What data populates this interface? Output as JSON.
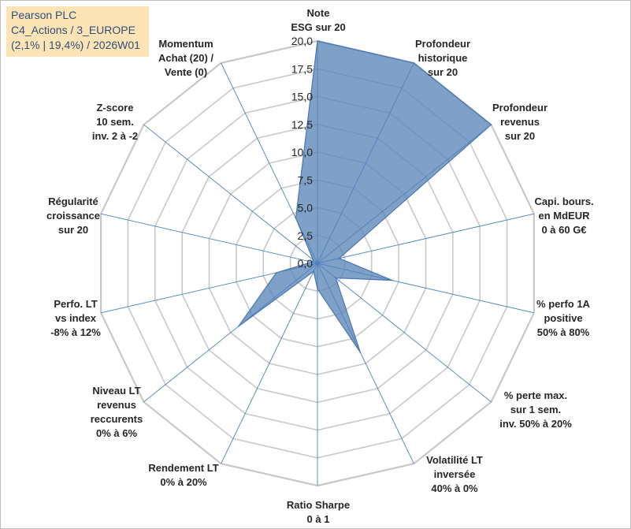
{
  "title_box": {
    "line1": "Pearson PLC",
    "line2": "C4_Actions / 3_EUROPE",
    "line3": "(2,1% | 19,4%) / 2026W01"
  },
  "colors": {
    "fill": "#5b86b8",
    "stroke": "#4a76b0",
    "grid": "#c8c8c8",
    "spoke": "#4f81bd",
    "title_bg": "#fce4b6"
  },
  "chart_data": {
    "type": "radar",
    "title": "Pearson PLC",
    "range": [
      0,
      20
    ],
    "tick_step": 2.5,
    "tick_labels": [
      "0,0",
      "2,5",
      "5,0",
      "7,5",
      "10,0",
      "12,5",
      "15,0",
      "17,5",
      "20,0"
    ],
    "axes": [
      {
        "label": [
          "Note",
          "ESG sur 20"
        ],
        "value": 20.0
      },
      {
        "label": [
          "Profondeur",
          "historique",
          "sur 20"
        ],
        "value": 20.0
      },
      {
        "label": [
          "Profondeur",
          "revenus",
          "sur 20"
        ],
        "value": 20.0
      },
      {
        "label": [
          "Capi. bours.",
          "en MdEUR",
          "0 à 60 G€"
        ],
        "value": 2.0
      },
      {
        "label": [
          "% perfo 1A",
          "positive",
          "50% à 80%"
        ],
        "value": 6.9
      },
      {
        "label": [
          "% perte max.",
          "sur 1 sem.",
          "inv. 50% à 20%"
        ],
        "value": 2.1
      },
      {
        "label": [
          "Volatilité LT",
          "inversée",
          "40% à 0%"
        ],
        "value": 8.9
      },
      {
        "label": [
          "Ratio Sharpe",
          "0 à 1"
        ],
        "value": 2.3
      },
      {
        "label": [
          "Rendement LT",
          "0% à 20%"
        ],
        "value": 0.8
      },
      {
        "label": [
          "Niveau LT",
          "revenus",
          "reccurents",
          "0% à 6%"
        ],
        "value": 9.1
      },
      {
        "label": [
          "Perfo. LT",
          "vs index",
          "-8% à 12%"
        ],
        "value": 3.8
      },
      {
        "label": [
          "Régularité",
          "croissance",
          "sur 20"
        ],
        "value": 0.5
      },
      {
        "label": [
          "Z-score",
          "10 sem.",
          "inv. 2 à -2"
        ],
        "value": 0.5
      },
      {
        "label": [
          "Momentum",
          "Achat (20) /",
          "Vente (0)"
        ],
        "value": 4.5
      }
    ]
  }
}
